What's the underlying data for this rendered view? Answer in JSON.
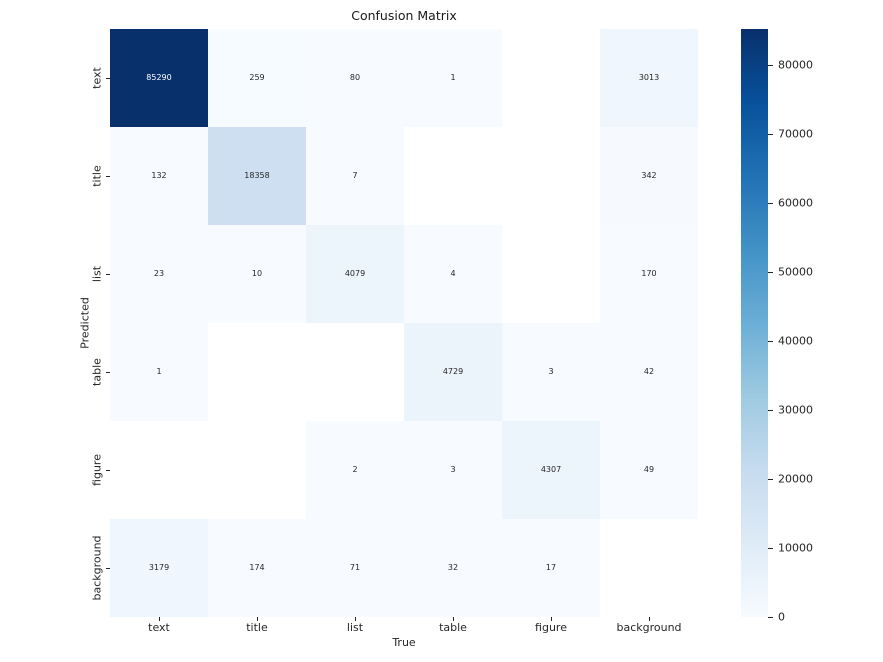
{
  "figure": {
    "background_color": "#ffffff",
    "text_color": "#262626"
  },
  "chart_data": {
    "type": "heatmap",
    "title": "Confusion Matrix",
    "xlabel": "True",
    "ylabel": "Predicted",
    "x_categories": [
      "text",
      "title",
      "list",
      "table",
      "figure",
      "background"
    ],
    "y_categories": [
      "text",
      "title",
      "list",
      "table",
      "figure",
      "background"
    ],
    "matrix": [
      [
        85290,
        259,
        80,
        1,
        null,
        3013
      ],
      [
        132,
        18358,
        7,
        null,
        null,
        342
      ],
      [
        23,
        10,
        4079,
        4,
        null,
        170
      ],
      [
        1,
        null,
        null,
        4729,
        3,
        42
      ],
      [
        null,
        null,
        2,
        3,
        4307,
        49
      ],
      [
        3179,
        174,
        71,
        32,
        17,
        null
      ]
    ],
    "vmin": 0,
    "vmax": 85290,
    "colormap": "Blues",
    "colormap_stops": [
      "#f7fbff",
      "#deebf7",
      "#c6dbef",
      "#9ecae1",
      "#6baed6",
      "#4292c6",
      "#2171b5",
      "#08519c",
      "#08306b"
    ],
    "empty_cell_color": "#ffffff",
    "annotation_dark_text_color": "#262626",
    "annotation_light_text_color": "#ffffff",
    "colorbar_ticks": [
      0,
      10000,
      20000,
      30000,
      40000,
      50000,
      60000,
      70000,
      80000
    ],
    "legend_position": "right-colorbar",
    "grid": false
  }
}
